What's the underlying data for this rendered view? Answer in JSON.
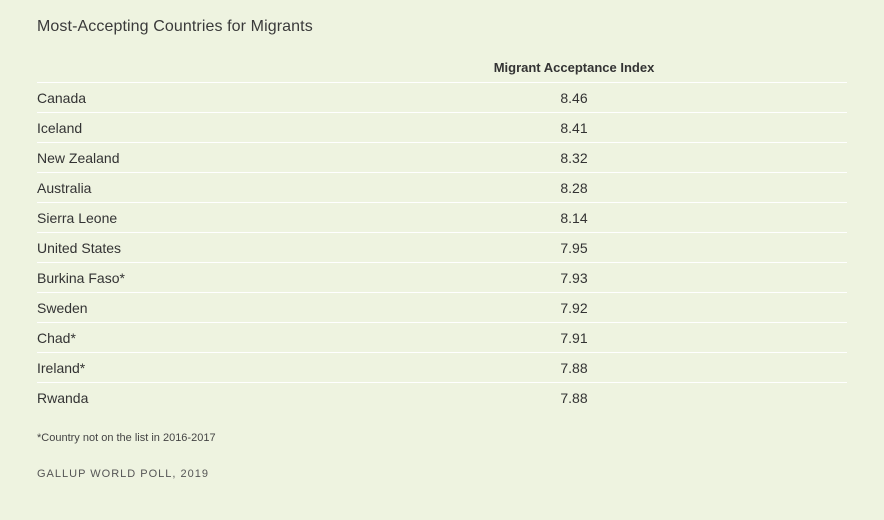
{
  "title": "Most-Accepting Countries for Migrants",
  "table": {
    "column_header": "Migrant Acceptance Index",
    "rows": [
      {
        "country": "Canada",
        "value": "8.46"
      },
      {
        "country": "Iceland",
        "value": "8.41"
      },
      {
        "country": "New Zealand",
        "value": "8.32"
      },
      {
        "country": "Australia",
        "value": "8.28"
      },
      {
        "country": "Sierra Leone",
        "value": "8.14"
      },
      {
        "country": "United States",
        "value": "7.95"
      },
      {
        "country": "Burkina Faso*",
        "value": "7.93"
      },
      {
        "country": "Sweden",
        "value": "7.92"
      },
      {
        "country": "Chad*",
        "value": "7.91"
      },
      {
        "country": "Ireland*",
        "value": "7.88"
      },
      {
        "country": "Rwanda",
        "value": "7.88"
      }
    ]
  },
  "footnote": "*Country not on the list in 2016-2017",
  "source": "GALLUP WORLD POLL, 2019",
  "colors": {
    "background": "#eef3e0",
    "row_divider": "#ffffff",
    "text": "#333333"
  }
}
